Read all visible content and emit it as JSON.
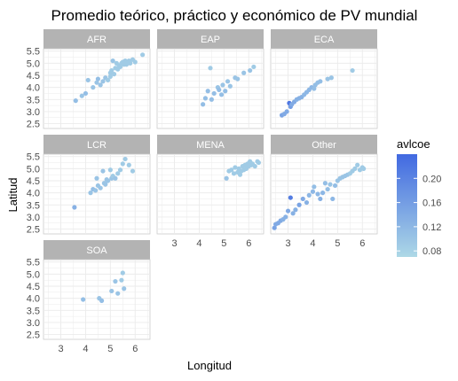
{
  "chart_data": {
    "type": "scatter",
    "title": "Promedio teórico, práctico y económico de PV mundial",
    "xlabel": "Longitud",
    "ylabel": "Latitud",
    "xlim": [
      2.3,
      6.6
    ],
    "ylim": [
      2.3,
      5.6
    ],
    "x_ticks": [
      "3",
      "4",
      "5",
      "6"
    ],
    "y_ticks": [
      "2.5",
      "3.0",
      "3.5",
      "4.0",
      "4.5",
      "5.0",
      "5.5"
    ],
    "grid": true,
    "legend": {
      "title": "avlcoe",
      "position": "right",
      "range": [
        0.07,
        0.24
      ],
      "ticks": [
        "0.08",
        "0.12",
        "0.16",
        "0.20"
      ],
      "low_color": "#add8e6",
      "high_color": "#4169e1"
    },
    "facets": [
      {
        "name": "AFR",
        "points": [
          {
            "x": 3.6,
            "y": 3.45,
            "c": 0.11
          },
          {
            "x": 3.85,
            "y": 3.65,
            "c": 0.1
          },
          {
            "x": 4.0,
            "y": 3.75,
            "c": 0.11
          },
          {
            "x": 4.1,
            "y": 4.3,
            "c": 0.1
          },
          {
            "x": 4.3,
            "y": 4.0,
            "c": 0.1
          },
          {
            "x": 4.45,
            "y": 4.2,
            "c": 0.1
          },
          {
            "x": 4.5,
            "y": 4.35,
            "c": 0.11
          },
          {
            "x": 4.6,
            "y": 4.1,
            "c": 0.1
          },
          {
            "x": 4.7,
            "y": 4.25,
            "c": 0.1
          },
          {
            "x": 4.8,
            "y": 4.4,
            "c": 0.1
          },
          {
            "x": 4.9,
            "y": 4.3,
            "c": 0.09
          },
          {
            "x": 5.0,
            "y": 4.45,
            "c": 0.09
          },
          {
            "x": 5.0,
            "y": 4.6,
            "c": 0.09
          },
          {
            "x": 5.05,
            "y": 4.7,
            "c": 0.09
          },
          {
            "x": 5.1,
            "y": 5.1,
            "c": 0.1
          },
          {
            "x": 5.15,
            "y": 4.55,
            "c": 0.09
          },
          {
            "x": 5.2,
            "y": 4.8,
            "c": 0.09
          },
          {
            "x": 5.25,
            "y": 5.0,
            "c": 0.09
          },
          {
            "x": 5.3,
            "y": 4.75,
            "c": 0.09
          },
          {
            "x": 5.35,
            "y": 4.9,
            "c": 0.09
          },
          {
            "x": 5.4,
            "y": 4.85,
            "c": 0.09
          },
          {
            "x": 5.45,
            "y": 5.0,
            "c": 0.09
          },
          {
            "x": 5.5,
            "y": 5.05,
            "c": 0.09
          },
          {
            "x": 5.55,
            "y": 4.95,
            "c": 0.09
          },
          {
            "x": 5.6,
            "y": 5.1,
            "c": 0.09
          },
          {
            "x": 5.65,
            "y": 4.95,
            "c": 0.09
          },
          {
            "x": 5.7,
            "y": 5.05,
            "c": 0.09
          },
          {
            "x": 5.75,
            "y": 5.1,
            "c": 0.09
          },
          {
            "x": 5.8,
            "y": 5.0,
            "c": 0.09
          },
          {
            "x": 5.9,
            "y": 5.15,
            "c": 0.09
          },
          {
            "x": 6.0,
            "y": 5.05,
            "c": 0.09
          },
          {
            "x": 6.3,
            "y": 5.35,
            "c": 0.09
          }
        ]
      },
      {
        "name": "EAP",
        "points": [
          {
            "x": 4.15,
            "y": 3.3,
            "c": 0.11
          },
          {
            "x": 4.25,
            "y": 3.55,
            "c": 0.11
          },
          {
            "x": 4.35,
            "y": 3.85,
            "c": 0.11
          },
          {
            "x": 4.45,
            "y": 4.8,
            "c": 0.09
          },
          {
            "x": 4.5,
            "y": 3.5,
            "c": 0.11
          },
          {
            "x": 4.6,
            "y": 3.75,
            "c": 0.11
          },
          {
            "x": 4.75,
            "y": 4.0,
            "c": 0.1
          },
          {
            "x": 4.8,
            "y": 3.9,
            "c": 0.11
          },
          {
            "x": 4.9,
            "y": 3.7,
            "c": 0.11
          },
          {
            "x": 4.95,
            "y": 4.1,
            "c": 0.1
          },
          {
            "x": 5.05,
            "y": 3.85,
            "c": 0.11
          },
          {
            "x": 5.15,
            "y": 4.25,
            "c": 0.1
          },
          {
            "x": 5.25,
            "y": 4.05,
            "c": 0.1
          },
          {
            "x": 5.45,
            "y": 4.4,
            "c": 0.1
          },
          {
            "x": 5.55,
            "y": 4.35,
            "c": 0.1
          },
          {
            "x": 5.8,
            "y": 4.6,
            "c": 0.1
          },
          {
            "x": 6.05,
            "y": 4.7,
            "c": 0.1
          },
          {
            "x": 6.2,
            "y": 4.85,
            "c": 0.09
          }
        ]
      },
      {
        "name": "ECA",
        "points": [
          {
            "x": 2.75,
            "y": 2.85,
            "c": 0.15
          },
          {
            "x": 2.85,
            "y": 2.9,
            "c": 0.14
          },
          {
            "x": 2.95,
            "y": 3.0,
            "c": 0.14
          },
          {
            "x": 3.05,
            "y": 3.35,
            "c": 0.22
          },
          {
            "x": 3.1,
            "y": 3.2,
            "c": 0.16
          },
          {
            "x": 3.15,
            "y": 3.3,
            "c": 0.14
          },
          {
            "x": 3.25,
            "y": 3.4,
            "c": 0.14
          },
          {
            "x": 3.35,
            "y": 3.5,
            "c": 0.13
          },
          {
            "x": 3.45,
            "y": 3.55,
            "c": 0.13
          },
          {
            "x": 3.55,
            "y": 3.6,
            "c": 0.13
          },
          {
            "x": 3.65,
            "y": 3.7,
            "c": 0.12
          },
          {
            "x": 3.75,
            "y": 3.8,
            "c": 0.12
          },
          {
            "x": 3.85,
            "y": 3.9,
            "c": 0.12
          },
          {
            "x": 3.95,
            "y": 4.0,
            "c": 0.12
          },
          {
            "x": 4.05,
            "y": 3.95,
            "c": 0.11
          },
          {
            "x": 4.1,
            "y": 4.1,
            "c": 0.11
          },
          {
            "x": 4.2,
            "y": 4.2,
            "c": 0.11
          },
          {
            "x": 4.3,
            "y": 4.25,
            "c": 0.11
          },
          {
            "x": 4.6,
            "y": 4.35,
            "c": 0.1
          },
          {
            "x": 4.75,
            "y": 4.4,
            "c": 0.1
          },
          {
            "x": 5.6,
            "y": 4.7,
            "c": 0.09
          }
        ]
      },
      {
        "name": "LCR",
        "points": [
          {
            "x": 3.55,
            "y": 3.4,
            "c": 0.13
          },
          {
            "x": 4.2,
            "y": 4.0,
            "c": 0.1
          },
          {
            "x": 4.3,
            "y": 4.15,
            "c": 0.11
          },
          {
            "x": 4.4,
            "y": 4.1,
            "c": 0.1
          },
          {
            "x": 4.45,
            "y": 4.6,
            "c": 0.1
          },
          {
            "x": 4.5,
            "y": 4.3,
            "c": 0.1
          },
          {
            "x": 4.6,
            "y": 4.2,
            "c": 0.1
          },
          {
            "x": 4.7,
            "y": 4.9,
            "c": 0.1
          },
          {
            "x": 4.75,
            "y": 4.4,
            "c": 0.1
          },
          {
            "x": 4.8,
            "y": 4.35,
            "c": 0.1
          },
          {
            "x": 4.85,
            "y": 4.55,
            "c": 0.1
          },
          {
            "x": 4.9,
            "y": 4.5,
            "c": 0.1
          },
          {
            "x": 5.0,
            "y": 4.95,
            "c": 0.09
          },
          {
            "x": 5.05,
            "y": 4.6,
            "c": 0.1
          },
          {
            "x": 5.1,
            "y": 4.7,
            "c": 0.09
          },
          {
            "x": 5.2,
            "y": 4.6,
            "c": 0.1
          },
          {
            "x": 5.3,
            "y": 4.8,
            "c": 0.09
          },
          {
            "x": 5.4,
            "y": 4.95,
            "c": 0.09
          },
          {
            "x": 5.5,
            "y": 5.2,
            "c": 0.09
          },
          {
            "x": 5.6,
            "y": 5.4,
            "c": 0.09
          },
          {
            "x": 5.75,
            "y": 5.15,
            "c": 0.09
          },
          {
            "x": 5.9,
            "y": 4.9,
            "c": 0.09
          }
        ]
      },
      {
        "name": "MENA",
        "points": [
          {
            "x": 5.1,
            "y": 4.6,
            "c": 0.1
          },
          {
            "x": 5.2,
            "y": 4.9,
            "c": 0.09
          },
          {
            "x": 5.3,
            "y": 4.95,
            "c": 0.09
          },
          {
            "x": 5.4,
            "y": 4.8,
            "c": 0.09
          },
          {
            "x": 5.45,
            "y": 5.05,
            "c": 0.09
          },
          {
            "x": 5.55,
            "y": 4.85,
            "c": 0.09
          },
          {
            "x": 5.6,
            "y": 5.0,
            "c": 0.09
          },
          {
            "x": 5.65,
            "y": 4.75,
            "c": 0.09
          },
          {
            "x": 5.7,
            "y": 4.9,
            "c": 0.09
          },
          {
            "x": 5.75,
            "y": 5.1,
            "c": 0.09
          },
          {
            "x": 5.8,
            "y": 4.95,
            "c": 0.09
          },
          {
            "x": 5.85,
            "y": 5.15,
            "c": 0.09
          },
          {
            "x": 5.9,
            "y": 5.0,
            "c": 0.09
          },
          {
            "x": 5.95,
            "y": 5.2,
            "c": 0.09
          },
          {
            "x": 6.0,
            "y": 5.1,
            "c": 0.09
          },
          {
            "x": 6.05,
            "y": 5.3,
            "c": 0.09
          },
          {
            "x": 6.1,
            "y": 5.15,
            "c": 0.09
          },
          {
            "x": 6.15,
            "y": 5.2,
            "c": 0.09
          },
          {
            "x": 6.25,
            "y": 5.1,
            "c": 0.09
          },
          {
            "x": 6.35,
            "y": 5.3,
            "c": 0.09
          },
          {
            "x": 6.4,
            "y": 5.25,
            "c": 0.09
          }
        ]
      },
      {
        "name": "Other",
        "points": [
          {
            "x": 2.45,
            "y": 2.55,
            "c": 0.15
          },
          {
            "x": 2.5,
            "y": 2.7,
            "c": 0.14
          },
          {
            "x": 2.6,
            "y": 2.75,
            "c": 0.14
          },
          {
            "x": 2.7,
            "y": 2.85,
            "c": 0.14
          },
          {
            "x": 2.8,
            "y": 2.9,
            "c": 0.13
          },
          {
            "x": 2.9,
            "y": 3.0,
            "c": 0.13
          },
          {
            "x": 3.0,
            "y": 3.25,
            "c": 0.14
          },
          {
            "x": 3.1,
            "y": 3.8,
            "c": 0.21
          },
          {
            "x": 3.2,
            "y": 3.15,
            "c": 0.13
          },
          {
            "x": 3.3,
            "y": 3.3,
            "c": 0.13
          },
          {
            "x": 3.45,
            "y": 3.5,
            "c": 0.15
          },
          {
            "x": 3.6,
            "y": 3.75,
            "c": 0.14
          },
          {
            "x": 3.75,
            "y": 3.6,
            "c": 0.13
          },
          {
            "x": 3.85,
            "y": 3.9,
            "c": 0.12
          },
          {
            "x": 4.0,
            "y": 4.05,
            "c": 0.12
          },
          {
            "x": 4.05,
            "y": 4.25,
            "c": 0.11
          },
          {
            "x": 4.2,
            "y": 3.95,
            "c": 0.12
          },
          {
            "x": 4.3,
            "y": 3.75,
            "c": 0.13
          },
          {
            "x": 4.4,
            "y": 4.0,
            "c": 0.12
          },
          {
            "x": 4.5,
            "y": 4.4,
            "c": 0.11
          },
          {
            "x": 4.6,
            "y": 4.15,
            "c": 0.11
          },
          {
            "x": 4.7,
            "y": 4.35,
            "c": 0.1
          },
          {
            "x": 4.8,
            "y": 3.75,
            "c": 0.12
          },
          {
            "x": 4.9,
            "y": 4.3,
            "c": 0.11
          },
          {
            "x": 5.0,
            "y": 4.5,
            "c": 0.1
          },
          {
            "x": 5.1,
            "y": 4.6,
            "c": 0.1
          },
          {
            "x": 5.2,
            "y": 4.65,
            "c": 0.1
          },
          {
            "x": 5.3,
            "y": 4.7,
            "c": 0.1
          },
          {
            "x": 5.4,
            "y": 4.75,
            "c": 0.1
          },
          {
            "x": 5.5,
            "y": 4.8,
            "c": 0.09
          },
          {
            "x": 5.6,
            "y": 4.9,
            "c": 0.09
          },
          {
            "x": 5.7,
            "y": 5.0,
            "c": 0.09
          },
          {
            "x": 5.8,
            "y": 5.15,
            "c": 0.09
          },
          {
            "x": 5.9,
            "y": 4.95,
            "c": 0.09
          },
          {
            "x": 6.0,
            "y": 5.05,
            "c": 0.09
          },
          {
            "x": 6.05,
            "y": 5.0,
            "c": 0.09
          }
        ]
      },
      {
        "name": "SOA",
        "points": [
          {
            "x": 3.9,
            "y": 3.95,
            "c": 0.11
          },
          {
            "x": 4.55,
            "y": 4.0,
            "c": 0.1
          },
          {
            "x": 4.65,
            "y": 3.9,
            "c": 0.11
          },
          {
            "x": 5.05,
            "y": 4.3,
            "c": 0.1
          },
          {
            "x": 5.2,
            "y": 4.7,
            "c": 0.1
          },
          {
            "x": 5.3,
            "y": 4.2,
            "c": 0.1
          },
          {
            "x": 5.45,
            "y": 4.75,
            "c": 0.09
          },
          {
            "x": 5.5,
            "y": 5.05,
            "c": 0.09
          },
          {
            "x": 5.55,
            "y": 4.4,
            "c": 0.1
          }
        ]
      }
    ]
  }
}
